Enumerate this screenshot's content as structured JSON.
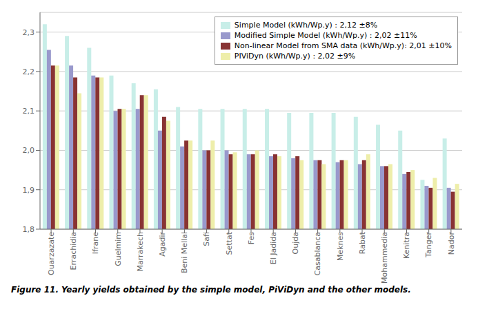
{
  "chart_data": {
    "type": "bar",
    "caption": "Figure 11. Yearly yields obtained by the simple model, PiViDyn and the other models.",
    "categories": [
      "Ouarzazate",
      "Errachidia",
      "Ifrane",
      "Guelmim",
      "Marrakech",
      "Agadir",
      "Beni Mellal",
      "Safi",
      "Settat",
      "Fes",
      "El Jadida",
      "Oujda",
      "Casablanca",
      "Meknes",
      "Rabat",
      "Mohammedia",
      "Kenitra",
      "Tanger",
      "Nador"
    ],
    "series": [
      {
        "name": "Simple Model (kWh/Wp.y) : 2,12 ±8%",
        "color": "#C8EEE8",
        "values": [
          2.32,
          2.29,
          2.26,
          2.19,
          2.17,
          2.155,
          2.11,
          2.105,
          2.105,
          2.105,
          2.105,
          2.095,
          2.095,
          2.095,
          2.085,
          2.065,
          2.05,
          1.925,
          2.03
        ]
      },
      {
        "name": "Modified Simple Model (kWh/Wp.y) : 2,02 ±11%",
        "color": "#9999CC",
        "values": [
          2.255,
          2.215,
          2.19,
          2.1,
          2.105,
          2.05,
          2.01,
          2.0,
          2.0,
          1.99,
          1.985,
          1.98,
          1.975,
          1.97,
          1.965,
          1.96,
          1.94,
          1.91,
          1.905
        ]
      },
      {
        "name": "Non-linear Model from SMA data (kWh/Wp.y): 2,01 ±10%",
        "color": "#883333",
        "values": [
          2.215,
          2.185,
          2.185,
          2.105,
          2.14,
          2.085,
          2.025,
          2.0,
          1.99,
          1.99,
          1.99,
          1.985,
          1.975,
          1.975,
          1.975,
          1.96,
          1.945,
          1.905,
          1.895
        ]
      },
      {
        "name": "PIViDyn (kWh/Wp.y) : 2,02 ±9%",
        "color": "#EEEEAA",
        "values": [
          2.215,
          2.145,
          2.185,
          2.105,
          2.14,
          2.075,
          2.025,
          2.025,
          1.995,
          2.0,
          1.985,
          1.975,
          1.965,
          1.975,
          1.99,
          1.965,
          1.95,
          1.93,
          1.915
        ]
      }
    ],
    "ylim": [
      1.8,
      2.35
    ],
    "yticks": [
      {
        "value": 1.8,
        "label": "1,8"
      },
      {
        "value": 1.9,
        "label": "1,9"
      },
      {
        "value": 2.0,
        "label": "2,0"
      },
      {
        "value": 2.1,
        "label": "2,1"
      },
      {
        "value": 2.2,
        "label": "2,2"
      },
      {
        "value": 2.3,
        "label": "2,3"
      }
    ],
    "grid": true,
    "legend": "upper right"
  }
}
